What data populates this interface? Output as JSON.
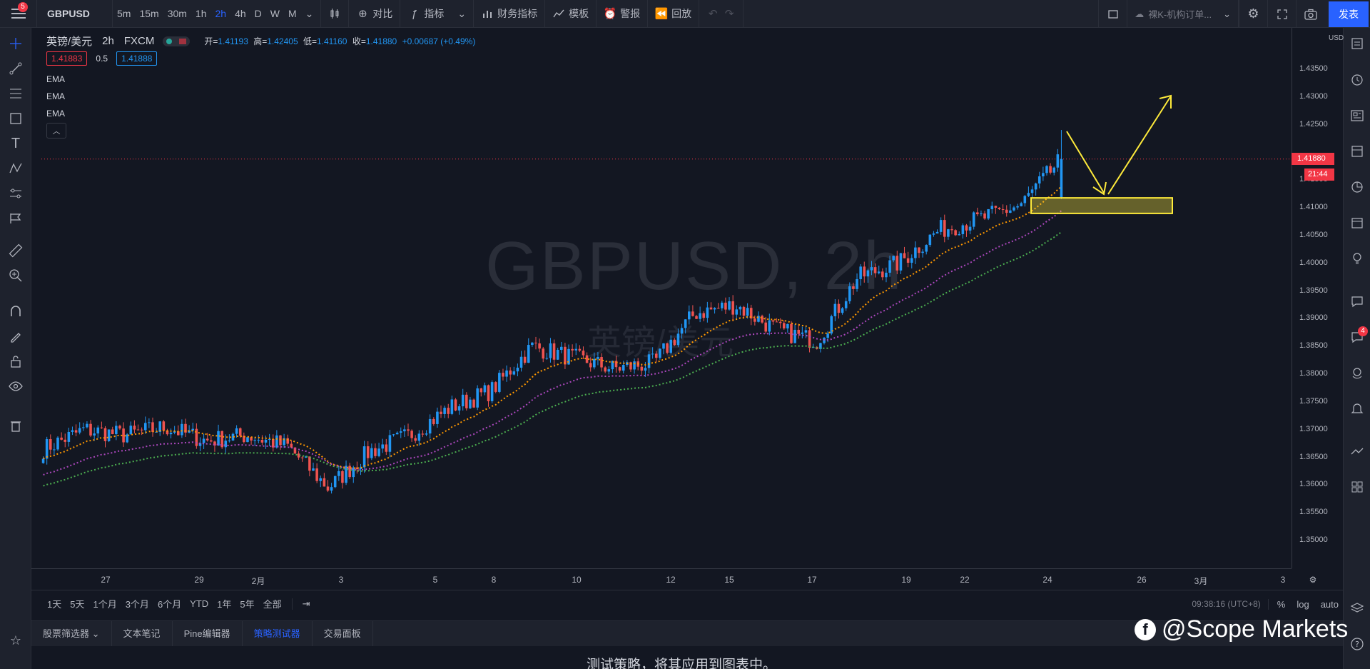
{
  "topbar": {
    "notification_count": "5",
    "symbol": "GBPUSD",
    "intervals": [
      "5m",
      "15m",
      "30m",
      "1h",
      "2h",
      "4h",
      "D",
      "W",
      "M"
    ],
    "compare_label": "对比",
    "indicators_label": "指标",
    "financials_label": "财务指标",
    "templates_label": "模板",
    "alerts_label": "警报",
    "replay_label": "回放",
    "layout_name": "裸K-机构订单...",
    "publish_label": "发表"
  },
  "legend": {
    "title": "英镑/美元",
    "interval": "2h",
    "exchange": "FXCM",
    "open_label": "开=",
    "open": "1.41193",
    "high_label": "高=",
    "high": "1.42405",
    "low_label": "低=",
    "low": "1.41160",
    "close_label": "收=",
    "close": "1.41880",
    "change": "+0.00687 (+0.49%)",
    "bid": "1.41883",
    "spread": "0.5",
    "ask": "1.41888",
    "ema_labels": [
      "EMA",
      "EMA",
      "EMA"
    ]
  },
  "watermark": {
    "main": "GBPUSD, 2h",
    "sub": "英镑/美元"
  },
  "price_axis": {
    "currency": "USD",
    "labels": [
      "1.43500",
      "1.43000",
      "1.42500",
      "1.41500",
      "1.41000",
      "1.40500",
      "1.40000",
      "1.39500",
      "1.39000",
      "1.38500",
      "1.38000",
      "1.37500",
      "1.37000",
      "1.36500",
      "1.36000",
      "1.35500",
      "1.35000"
    ],
    "current_price": "1.41880",
    "countdown": "21:44"
  },
  "time_axis": {
    "labels": [
      "27",
      "29",
      "2月",
      "3",
      "5",
      "8",
      "10",
      "12",
      "15",
      "17",
      "19",
      "22",
      "24",
      "26",
      "3月",
      "3"
    ]
  },
  "range_bar": {
    "ranges": [
      "1天",
      "5天",
      "1个月",
      "3个月",
      "6个月",
      "YTD",
      "1年",
      "5年",
      "全部"
    ],
    "clock": "09:38:16 (UTC+8)",
    "percent": "%",
    "log": "log",
    "auto": "auto"
  },
  "bottom_tabs": [
    "股票筛选器",
    "文本笔记",
    "Pine编辑器",
    "策略测试器",
    "交易面板"
  ],
  "bottom_message": "测试策略，将其应用到图表中。",
  "brand": "@Scope Markets",
  "right_badge": "4",
  "colors": {
    "up": "#2196f3",
    "down": "#ef5350",
    "ema_fast": "#ff9800",
    "ema_mid": "#ab47bc",
    "ema_slow": "#4caf50",
    "annotation": "#ffeb3b",
    "accent": "#2962ff"
  },
  "chart_data": {
    "type": "candlestick",
    "symbol": "GBPUSD",
    "interval": "2h",
    "ylim": [
      1.345,
      1.44
    ],
    "x": [
      "27",
      "29",
      "2月",
      "3",
      "5",
      "8",
      "10",
      "12",
      "15",
      "17",
      "19",
      "22",
      "24"
    ],
    "close_path": [
      1.3665,
      1.37,
      1.369,
      1.3705,
      1.368,
      1.369,
      1.367,
      1.3595,
      1.366,
      1.369,
      1.374,
      1.377,
      1.385,
      1.383,
      1.381,
      1.382,
      1.391,
      1.3925,
      1.388,
      1.386,
      1.3975,
      1.4,
      1.406,
      1.408,
      1.4105,
      1.4188
    ],
    "ema_fast_end": 1.401,
    "ema_mid_end": 1.397,
    "ema_slow_end": 1.3935,
    "annotation_zone": [
      1.409,
      1.4118
    ]
  }
}
